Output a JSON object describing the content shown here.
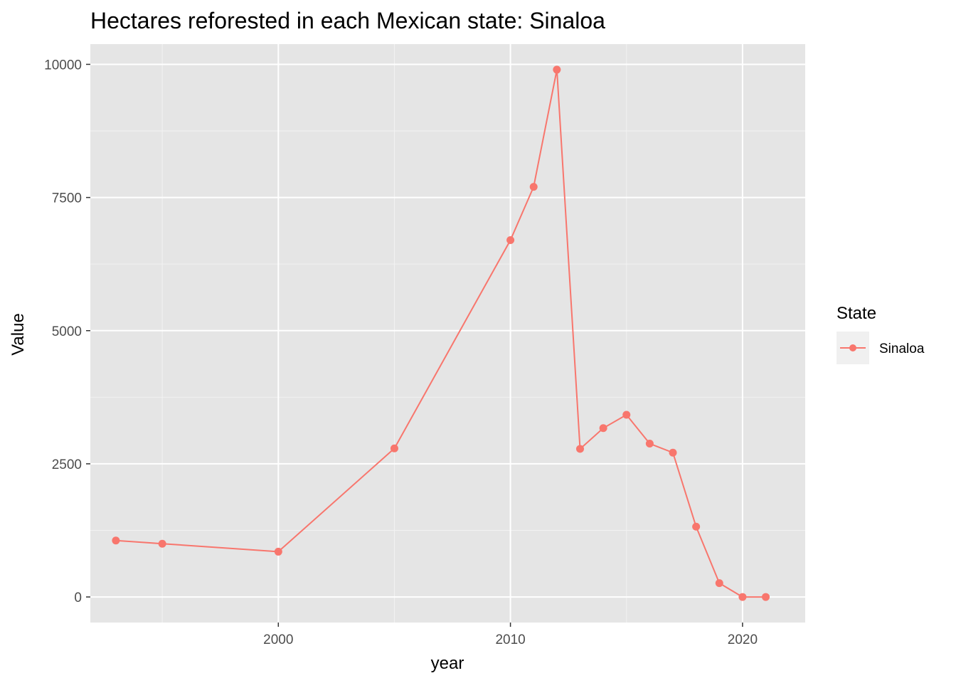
{
  "chart_data": {
    "type": "line",
    "title": "Hectares reforested in each Mexican state: Sinaloa",
    "xlabel": "year",
    "ylabel": "Value",
    "xlim": [
      1991.9,
      2022.7
    ],
    "ylim": [
      -480,
      10380
    ],
    "x_ticks": [
      2000,
      2010,
      2020
    ],
    "y_ticks": [
      0,
      2500,
      5000,
      7500,
      10000
    ],
    "x_tick_labels": [
      "2000",
      "2010",
      "2020"
    ],
    "y_tick_labels": [
      "0",
      "2500",
      "5000",
      "7500",
      "10000"
    ],
    "grid": true,
    "legend": {
      "title": "State",
      "position": "right"
    },
    "series": [
      {
        "name": "Sinaloa",
        "color": "#f8766d",
        "x": [
          1993,
          1995,
          2000,
          2005,
          2010,
          2011,
          2012,
          2013,
          2014,
          2015,
          2016,
          2017,
          2018,
          2019,
          2020,
          2021
        ],
        "y": [
          1060,
          1000,
          850,
          2790,
          6700,
          7700,
          9900,
          2780,
          3170,
          3420,
          2880,
          2710,
          1320,
          260,
          0,
          0
        ]
      }
    ]
  }
}
